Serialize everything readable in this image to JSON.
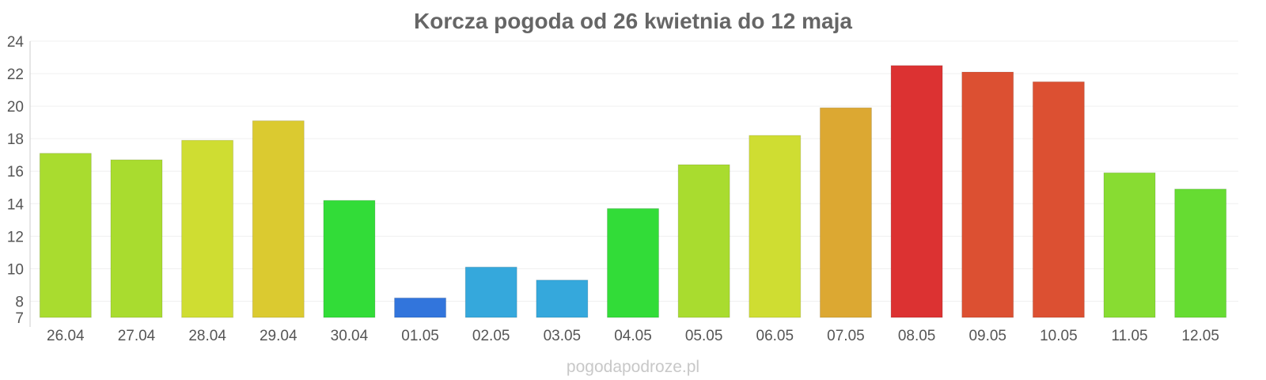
{
  "watermark": "pogodapodroze.pl",
  "colors": {
    "title": "#666666",
    "tick_text": "#555555",
    "grid": "#f0f0f0",
    "axis": "#cccccc",
    "watermark": "#c8c8c8"
  },
  "chart_data": {
    "type": "bar",
    "title": "Korcza pogoda od 26 kwietnia do 12 maja",
    "xlabel": "",
    "ylabel": "",
    "ylim": [
      7,
      24
    ],
    "yticks": [
      7,
      8,
      10,
      12,
      14,
      16,
      18,
      20,
      22,
      24
    ],
    "grid": true,
    "legend": "none",
    "categories": [
      "26.04",
      "27.04",
      "28.04",
      "29.04",
      "30.04",
      "01.05",
      "02.05",
      "03.05",
      "04.05",
      "05.05",
      "06.05",
      "07.05",
      "08.05",
      "09.05",
      "10.05",
      "11.05",
      "12.05"
    ],
    "values": [
      17.1,
      16.7,
      17.9,
      19.1,
      14.2,
      8.2,
      10.1,
      9.3,
      13.7,
      16.4,
      18.2,
      19.9,
      22.5,
      22.1,
      21.5,
      15.9,
      14.9
    ],
    "bar_colors": [
      "#a9dc2f",
      "#a9dc2f",
      "#cfdd32",
      "#dbca30",
      "#32dc38",
      "#3275dc",
      "#35a8dc",
      "#35a8dc",
      "#32dc38",
      "#a9dc2f",
      "#cfdd32",
      "#dca832",
      "#dc3232",
      "#dc5032",
      "#dc5032",
      "#88dc32",
      "#66dc32"
    ]
  }
}
